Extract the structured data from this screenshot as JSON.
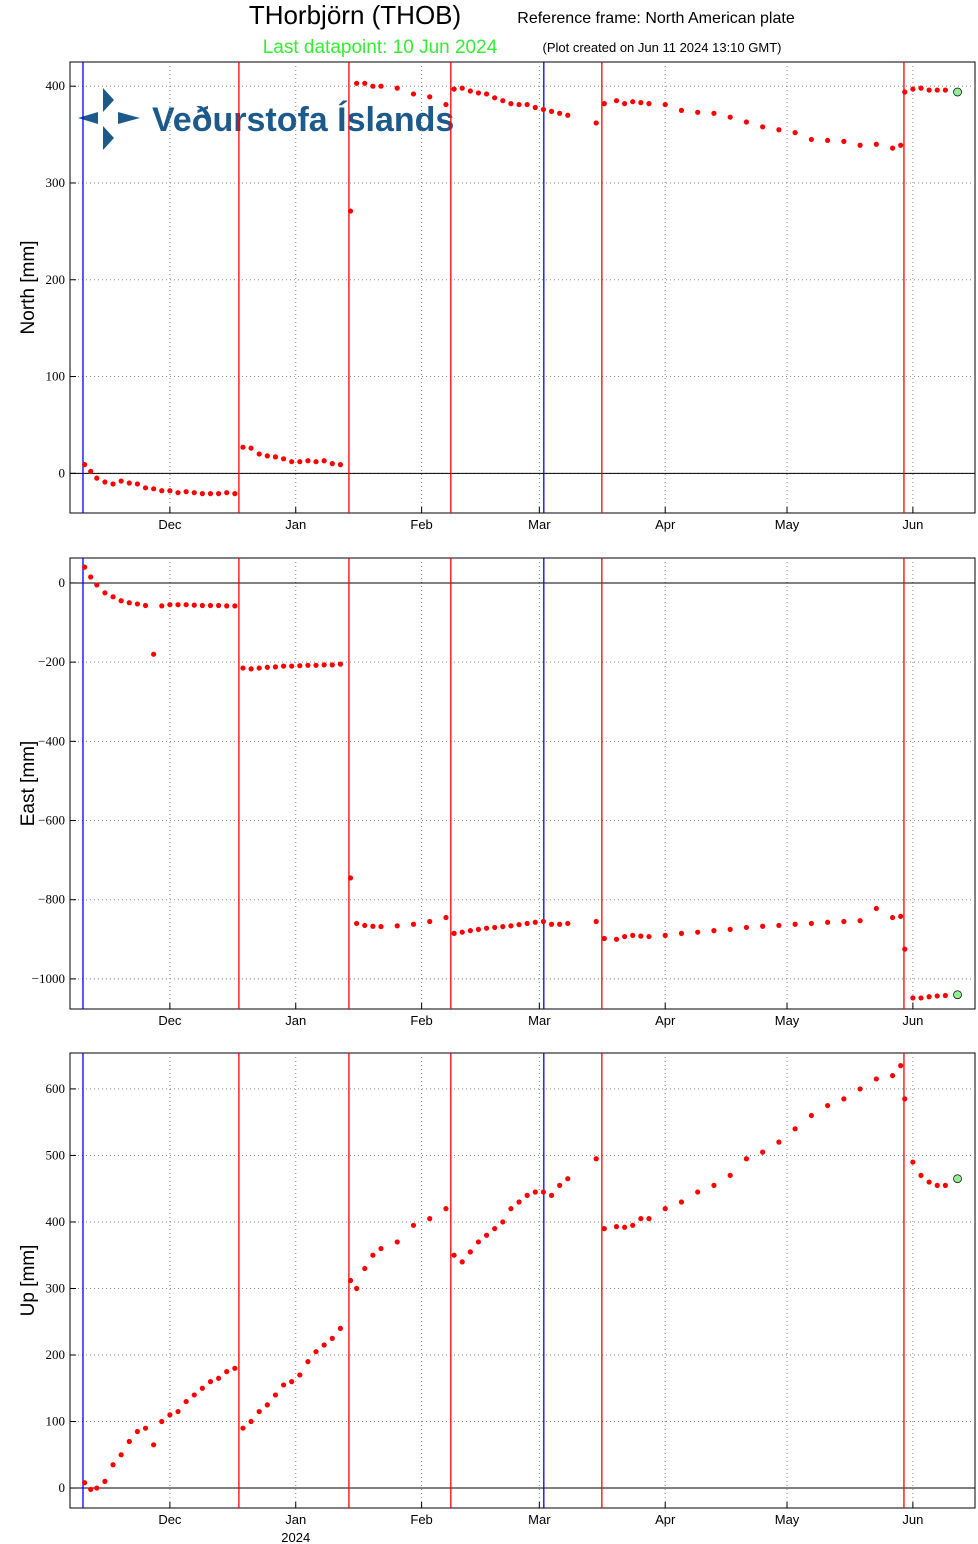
{
  "header": {
    "title": "THorbjörn (THOB)",
    "frame": "Reference frame: North American plate",
    "last": "Last datapoint: 10 Jun 2024",
    "created": "(Plot created on Jun 11 2024 13:10 GMT)",
    "logo_text": "Veðurstofa Íslands"
  },
  "chart_data": [
    {
      "type": "scatter",
      "y_label": "North [mm]",
      "color": "#ff0000",
      "last_color": "#90ee90",
      "grid": true,
      "zero_line": true,
      "xlim": [
        5.4,
        228.3
      ],
      "xticks": [
        {
          "value": 30,
          "label": "Dec"
        },
        {
          "value": 61,
          "label": "Jan"
        },
        {
          "value": 92,
          "label": "Feb"
        },
        {
          "value": 121,
          "label": "Mar"
        },
        {
          "value": 152,
          "label": "Apr"
        },
        {
          "value": 182,
          "label": "May"
        },
        {
          "value": 213,
          "label": "Jun"
        }
      ],
      "ylim": [
        -41,
        425
      ],
      "yticks": [
        0,
        100,
        200,
        300,
        400
      ],
      "vlines": [
        {
          "x": 8.6,
          "color": "#0000ff"
        },
        {
          "x": 47,
          "color": "#ff0000"
        },
        {
          "x": 74.1,
          "color": "#ff0000"
        },
        {
          "x": 99.2,
          "color": "#ff0000"
        },
        {
          "x": 122.1,
          "color": "#0000ff"
        },
        {
          "x": 136.4,
          "color": "#ff0000"
        },
        {
          "x": 210.8,
          "color": "#ff0000"
        }
      ],
      "x": [
        9,
        10.5,
        12,
        14,
        16,
        18,
        20,
        22,
        24,
        26,
        28,
        30,
        32,
        34,
        36,
        38,
        40,
        42,
        44,
        46,
        48,
        50,
        52,
        54,
        56,
        58,
        60,
        62,
        64,
        66,
        68,
        70,
        72,
        74.5,
        76,
        78,
        80,
        82,
        86,
        90,
        94,
        98,
        100,
        102,
        104,
        106,
        108,
        110,
        112,
        114,
        116,
        118,
        120,
        122,
        124,
        126,
        128,
        135,
        137,
        140,
        142,
        144,
        146,
        148,
        152,
        156,
        160,
        164,
        168,
        172,
        176,
        180,
        184,
        188,
        192,
        196,
        200,
        204,
        208,
        210,
        211,
        213,
        215,
        217,
        219,
        221,
        224
      ],
      "values": [
        9,
        2,
        -5,
        -9,
        -11,
        -8,
        -10,
        -11,
        -15,
        -16,
        -18,
        -18,
        -20,
        -19,
        -20,
        -21,
        -21,
        -21,
        -20,
        -21,
        27,
        26,
        20,
        18,
        17,
        15,
        12,
        12,
        13,
        12,
        13,
        10,
        9,
        271,
        403,
        403,
        400,
        400,
        398,
        392,
        389,
        381,
        397,
        398,
        395,
        393,
        392,
        388,
        385,
        382,
        381,
        381,
        378,
        376,
        374,
        372,
        370,
        362,
        382,
        385,
        382,
        384,
        383,
        382,
        381,
        375,
        373,
        372,
        368,
        363,
        358,
        355,
        352,
        345,
        344,
        343,
        339,
        340,
        336,
        339,
        394,
        397,
        398,
        396,
        396,
        396,
        394
      ]
    },
    {
      "type": "scatter",
      "y_label": "East [mm]",
      "color": "#ff0000",
      "last_color": "#90ee90",
      "grid": true,
      "zero_line": true,
      "xlim": [
        5.4,
        228.3
      ],
      "xticks": [
        {
          "value": 30,
          "label": "Dec"
        },
        {
          "value": 61,
          "label": "Jan"
        },
        {
          "value": 92,
          "label": "Feb"
        },
        {
          "value": 121,
          "label": "Mar"
        },
        {
          "value": 152,
          "label": "Apr"
        },
        {
          "value": 182,
          "label": "May"
        },
        {
          "value": 213,
          "label": "Jun"
        }
      ],
      "ylim": [
        -1076,
        63
      ],
      "yticks": [
        {
          "value": -1000,
          "label": "−1000"
        },
        {
          "value": -800,
          "label": "−800"
        },
        {
          "value": -600,
          "label": "−600"
        },
        {
          "value": -400,
          "label": "−400"
        },
        {
          "value": -200,
          "label": "−200"
        },
        0
      ],
      "vlines": [
        {
          "x": 8.6,
          "color": "#0000ff"
        },
        {
          "x": 47,
          "color": "#ff0000"
        },
        {
          "x": 74.1,
          "color": "#ff0000"
        },
        {
          "x": 99.2,
          "color": "#ff0000"
        },
        {
          "x": 122.1,
          "color": "#0000ff"
        },
        {
          "x": 136.4,
          "color": "#ff0000"
        },
        {
          "x": 210.8,
          "color": "#ff0000"
        }
      ],
      "x": [
        9,
        10.5,
        12,
        14,
        16,
        18,
        20,
        22,
        24,
        26,
        28,
        30,
        32,
        34,
        36,
        38,
        40,
        42,
        44,
        46,
        48,
        50,
        52,
        54,
        56,
        58,
        60,
        62,
        64,
        66,
        68,
        70,
        72,
        74.5,
        76,
        78,
        80,
        82,
        86,
        90,
        94,
        98,
        100,
        102,
        104,
        106,
        108,
        110,
        112,
        114,
        116,
        118,
        120,
        122,
        124,
        126,
        128,
        135,
        137,
        140,
        142,
        144,
        146,
        148,
        152,
        156,
        160,
        164,
        168,
        172,
        176,
        180,
        184,
        188,
        192,
        196,
        200,
        204,
        208,
        210,
        211,
        213,
        215,
        217,
        219,
        221,
        224
      ],
      "values": [
        40,
        15,
        -5,
        -25,
        -35,
        -45,
        -50,
        -53,
        -57,
        -180,
        -58,
        -55,
        -55,
        -55,
        -56,
        -57,
        -57,
        -57,
        -58,
        -58,
        -215,
        -217,
        -215,
        -213,
        -212,
        -210,
        -210,
        -209,
        -208,
        -208,
        -207,
        -207,
        -205,
        -745,
        -860,
        -865,
        -867,
        -868,
        -866,
        -862,
        -855,
        -845,
        -885,
        -882,
        -878,
        -875,
        -872,
        -870,
        -868,
        -866,
        -863,
        -860,
        -857,
        -855,
        -862,
        -862,
        -860,
        -855,
        -898,
        -900,
        -893,
        -890,
        -892,
        -893,
        -890,
        -885,
        -882,
        -878,
        -875,
        -870,
        -867,
        -865,
        -862,
        -860,
        -857,
        -855,
        -853,
        -822,
        -845,
        -842,
        -925,
        -1048,
        -1048,
        -1045,
        -1043,
        -1042,
        -1040
      ]
    },
    {
      "type": "scatter",
      "y_label": "Up [mm]",
      "year_label": "2024",
      "color": "#ff0000",
      "last_color": "#90ee90",
      "grid": true,
      "zero_line": true,
      "xlim": [
        5.4,
        228.3
      ],
      "xticks": [
        {
          "value": 30,
          "label": "Dec"
        },
        {
          "value": 61,
          "label": "Jan"
        },
        {
          "value": 92,
          "label": "Feb"
        },
        {
          "value": 121,
          "label": "Mar"
        },
        {
          "value": 152,
          "label": "Apr"
        },
        {
          "value": 182,
          "label": "May"
        },
        {
          "value": 213,
          "label": "Jun"
        }
      ],
      "ylim": [
        -30,
        654
      ],
      "yticks": [
        0,
        100,
        200,
        300,
        400,
        500,
        600
      ],
      "vlines": [
        {
          "x": 8.6,
          "color": "#0000ff"
        },
        {
          "x": 47,
          "color": "#ff0000"
        },
        {
          "x": 74.1,
          "color": "#ff0000"
        },
        {
          "x": 99.2,
          "color": "#ff0000"
        },
        {
          "x": 122.1,
          "color": "#0000ff"
        },
        {
          "x": 136.4,
          "color": "#ff0000"
        },
        {
          "x": 210.8,
          "color": "#ff0000"
        }
      ],
      "x": [
        9,
        10.5,
        12,
        14,
        16,
        18,
        20,
        22,
        24,
        26,
        28,
        30,
        32,
        34,
        36,
        38,
        40,
        42,
        44,
        46,
        48,
        50,
        52,
        54,
        56,
        58,
        60,
        62,
        64,
        66,
        68,
        70,
        72,
        74.5,
        76,
        78,
        80,
        82,
        86,
        90,
        94,
        98,
        100,
        102,
        104,
        106,
        108,
        110,
        112,
        114,
        116,
        118,
        120,
        122,
        124,
        126,
        128,
        135,
        137,
        140,
        142,
        144,
        146,
        148,
        152,
        156,
        160,
        164,
        168,
        172,
        176,
        180,
        184,
        188,
        192,
        196,
        200,
        204,
        208,
        210,
        211,
        213,
        215,
        217,
        219,
        221,
        224
      ],
      "values": [
        8,
        -2,
        0,
        10,
        35,
        50,
        70,
        85,
        90,
        65,
        100,
        110,
        115,
        130,
        140,
        150,
        160,
        165,
        175,
        180,
        90,
        100,
        115,
        125,
        140,
        155,
        160,
        170,
        190,
        205,
        215,
        225,
        240,
        312,
        300,
        330,
        350,
        360,
        370,
        395,
        405,
        420,
        350,
        340,
        355,
        370,
        380,
        390,
        400,
        420,
        430,
        440,
        445,
        445,
        440,
        455,
        465,
        495,
        390,
        393,
        392,
        395,
        405,
        405,
        420,
        430,
        445,
        455,
        470,
        495,
        505,
        520,
        540,
        560,
        575,
        585,
        600,
        615,
        620,
        635,
        585,
        490,
        470,
        460,
        455,
        455,
        465
      ]
    }
  ]
}
